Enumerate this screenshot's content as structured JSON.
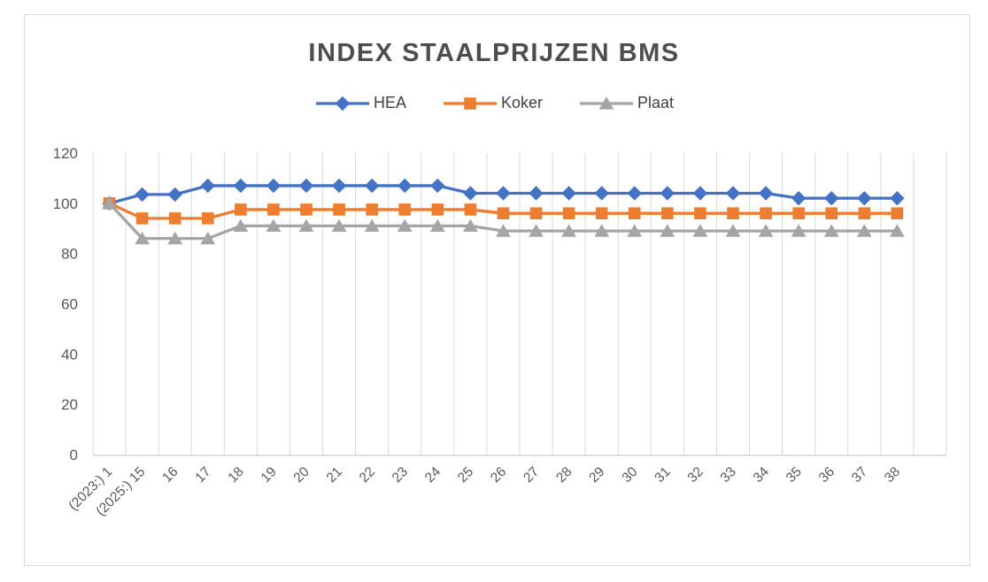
{
  "chart_data": {
    "type": "line",
    "title": "INDEX STAALPRIJZEN BMS",
    "categories": [
      "(2023:) 1",
      "(2025:) 15",
      "16",
      "17",
      "18",
      "19",
      "20",
      "21",
      "22",
      "23",
      "24",
      "25",
      "26",
      "27",
      "28",
      "29",
      "30",
      "31",
      "32",
      "33",
      "34",
      "35",
      "36",
      "37",
      "38",
      ""
    ],
    "series": [
      {
        "name": "HEA",
        "color": "#4472C4",
        "marker": "diamond",
        "values": [
          100,
          103.5,
          103.5,
          107,
          107,
          107,
          107,
          107,
          107,
          107,
          107,
          104,
          104,
          104,
          104,
          104,
          104,
          104,
          104,
          104,
          104,
          102,
          102,
          102,
          102,
          null
        ]
      },
      {
        "name": "Koker",
        "color": "#ED7D31",
        "marker": "square",
        "values": [
          100,
          94,
          94,
          94,
          97.5,
          97.5,
          97.5,
          97.5,
          97.5,
          97.5,
          97.5,
          97.5,
          96,
          96,
          96,
          96,
          96,
          96,
          96,
          96,
          96,
          96,
          96,
          96,
          96,
          null
        ]
      },
      {
        "name": "Plaat",
        "color": "#A5A5A5",
        "marker": "triangle",
        "values": [
          100,
          86,
          86,
          86,
          91,
          91,
          91,
          91,
          91,
          91,
          91,
          91,
          89,
          89,
          89,
          89,
          89,
          89,
          89,
          89,
          89,
          89,
          89,
          89,
          89,
          null
        ]
      }
    ],
    "ylim": [
      0,
      120
    ],
    "yticks": [
      0,
      20,
      40,
      60,
      80,
      100,
      120
    ],
    "xlabel": "",
    "ylabel": "",
    "grid": "vertical-only",
    "legend_position": "top"
  },
  "styles": {
    "grid_color": "#D9D9D9",
    "axis_line_color": "#D6D6D6",
    "axis_text_color": "#595959",
    "title_color": "#4d4d4d",
    "legend_text_color": "#404040",
    "frame_border_color": "#D9D9D9",
    "background_color": "#ffffff"
  }
}
